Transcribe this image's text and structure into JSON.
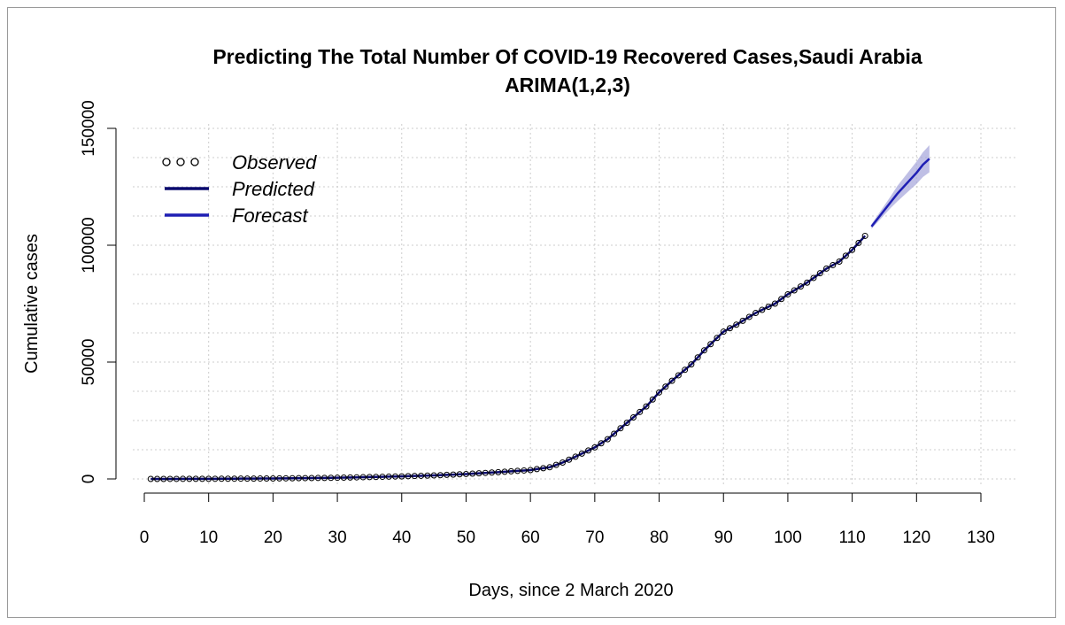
{
  "chart_data": {
    "type": "line",
    "title": "Predicting The Total Number Of COVID-19 Recovered Cases,Saudi Arabia",
    "subtitle": "ARIMA(1,2,3)",
    "xlabel": "Days, since 2 March 2020",
    "ylabel": "Cumulative cases",
    "xlim": [
      0,
      130
    ],
    "ylim": [
      0,
      150000
    ],
    "x_ticks": [
      0,
      10,
      20,
      30,
      40,
      50,
      60,
      70,
      80,
      90,
      100,
      110,
      120,
      130
    ],
    "x_tick_labels": [
      "0",
      "10",
      "20",
      "30",
      "40",
      "50",
      "60",
      "70",
      "80",
      "90",
      "100",
      "110",
      "120",
      "130"
    ],
    "y_ticks": [
      0,
      50000,
      100000,
      150000
    ],
    "y_tick_labels": [
      "0",
      "50000",
      "100000",
      "150000"
    ],
    "grid": true,
    "legend": {
      "position": "top-left",
      "entries": [
        {
          "label": "Observed",
          "style": "points"
        },
        {
          "label": "Predicted",
          "style": "line"
        },
        {
          "label": "Forecast",
          "style": "line"
        }
      ]
    },
    "colors": {
      "observed": "#000000",
      "predicted": "#0a0a6e",
      "forecast": "#1e1eb4",
      "forecast_band": "#aaaadc",
      "grid": "#cccccc"
    },
    "observed_anchor_points": [
      [
        1,
        0
      ],
      [
        10,
        50
      ],
      [
        20,
        200
      ],
      [
        30,
        500
      ],
      [
        35,
        800
      ],
      [
        40,
        1100
      ],
      [
        45,
        1500
      ],
      [
        50,
        2100
      ],
      [
        55,
        2900
      ],
      [
        60,
        3800
      ],
      [
        63,
        5000
      ],
      [
        65,
        7000
      ],
      [
        67,
        9500
      ],
      [
        70,
        13500
      ],
      [
        72,
        17000
      ],
      [
        75,
        24000
      ],
      [
        78,
        31000
      ],
      [
        80,
        37000
      ],
      [
        82,
        42000
      ],
      [
        85,
        49000
      ],
      [
        87,
        55000
      ],
      [
        90,
        63000
      ],
      [
        92,
        66000
      ],
      [
        95,
        71000
      ],
      [
        98,
        75000
      ],
      [
        100,
        79000
      ],
      [
        103,
        84000
      ],
      [
        106,
        90000
      ],
      [
        108,
        93000
      ],
      [
        110,
        98000
      ],
      [
        112,
        104000
      ]
    ],
    "forecast": {
      "x": [
        113,
        114,
        115,
        116,
        117,
        118,
        119,
        120,
        121,
        122
      ],
      "values": [
        108000,
        111500,
        115000,
        118500,
        122000,
        125000,
        128000,
        131000,
        134500,
        137000
      ],
      "lower": [
        107000,
        110000,
        113000,
        116000,
        118700,
        121200,
        123700,
        126200,
        129200,
        131200
      ],
      "upper": [
        109000,
        113000,
        117000,
        121000,
        125300,
        128800,
        132300,
        135800,
        139800,
        142800
      ]
    }
  }
}
